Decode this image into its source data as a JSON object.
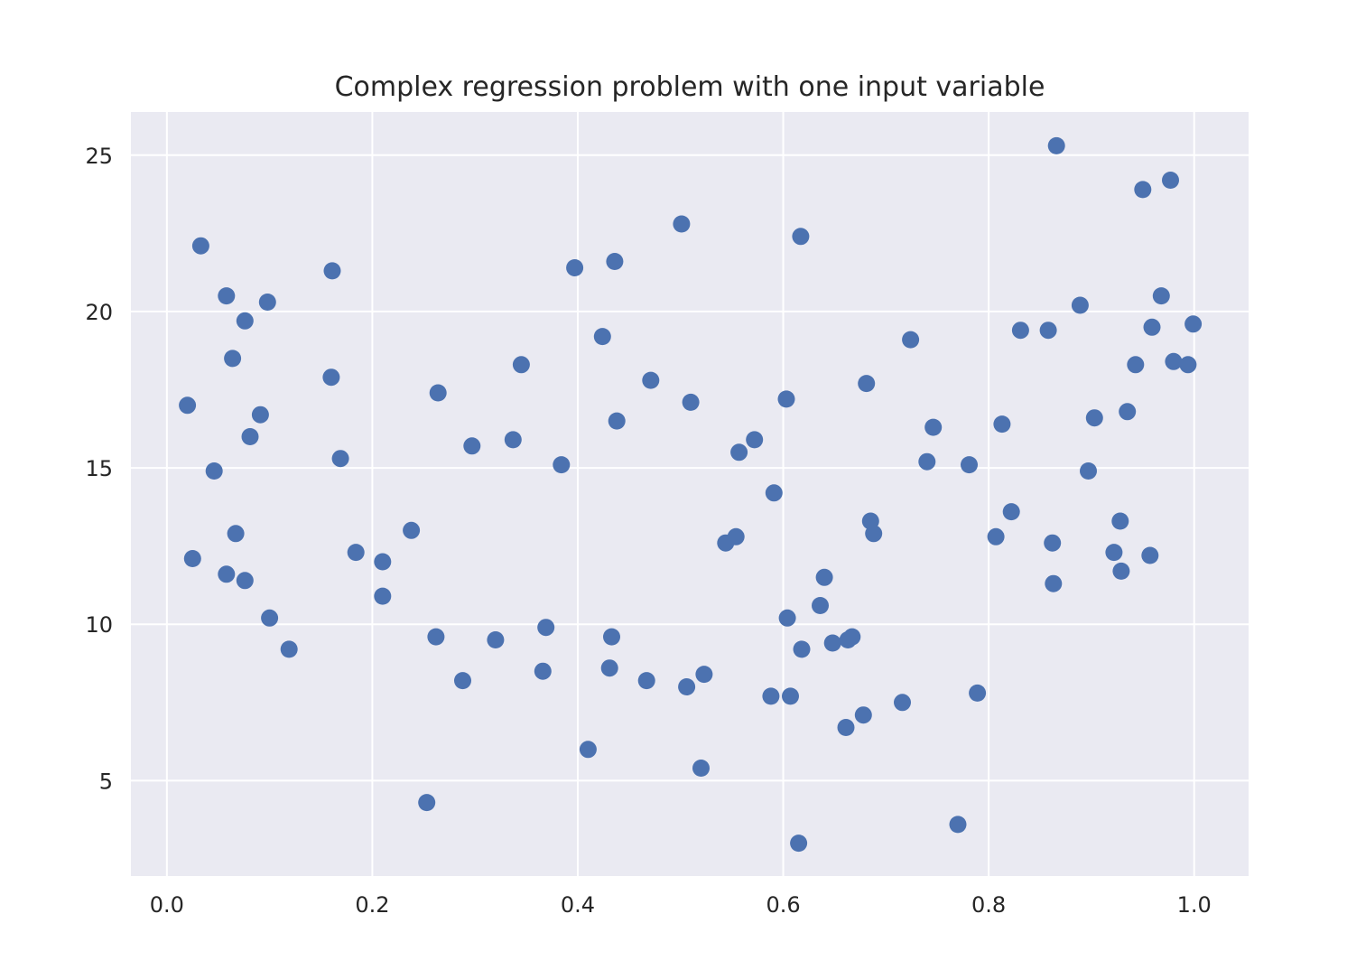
{
  "chart_data": {
    "type": "scatter",
    "title": "Complex regression problem with one input variable",
    "xlabel": "",
    "ylabel": "",
    "xlim": [
      -0.035,
      1.053
    ],
    "ylim": [
      1.95,
      26.38
    ],
    "x_ticks": [
      0.0,
      0.2,
      0.4,
      0.6,
      0.8,
      1.0
    ],
    "x_tick_labels": [
      "0.0",
      "0.2",
      "0.4",
      "0.6",
      "0.8",
      "1.0"
    ],
    "y_ticks": [
      5,
      10,
      15,
      20,
      25
    ],
    "y_tick_labels": [
      "5",
      "10",
      "15",
      "20",
      "25"
    ],
    "grid": true,
    "legend": "none",
    "colors": {
      "background": "#eaeaf2",
      "grid": "#ffffff",
      "marker": "#4c72b0",
      "text": "#262626"
    },
    "series": [
      {
        "points": [
          [
            0.02,
            17.0
          ],
          [
            0.025,
            12.1
          ],
          [
            0.033,
            22.1
          ],
          [
            0.046,
            14.9
          ],
          [
            0.058,
            20.5
          ],
          [
            0.058,
            11.6
          ],
          [
            0.064,
            18.5
          ],
          [
            0.067,
            12.9
          ],
          [
            0.076,
            19.7
          ],
          [
            0.076,
            11.4
          ],
          [
            0.081,
            16.0
          ],
          [
            0.091,
            16.7
          ],
          [
            0.098,
            20.3
          ],
          [
            0.1,
            10.2
          ],
          [
            0.119,
            9.2
          ],
          [
            0.16,
            17.9
          ],
          [
            0.161,
            21.3
          ],
          [
            0.169,
            15.3
          ],
          [
            0.184,
            12.3
          ],
          [
            0.21,
            10.9
          ],
          [
            0.21,
            12.0
          ],
          [
            0.238,
            13.0
          ],
          [
            0.253,
            4.3
          ],
          [
            0.262,
            9.6
          ],
          [
            0.264,
            17.4
          ],
          [
            0.288,
            8.2
          ],
          [
            0.297,
            15.7
          ],
          [
            0.32,
            9.5
          ],
          [
            0.337,
            15.9
          ],
          [
            0.345,
            18.3
          ],
          [
            0.366,
            8.5
          ],
          [
            0.369,
            9.9
          ],
          [
            0.384,
            15.1
          ],
          [
            0.397,
            21.4
          ],
          [
            0.41,
            6.0
          ],
          [
            0.424,
            19.2
          ],
          [
            0.431,
            8.6
          ],
          [
            0.433,
            9.6
          ],
          [
            0.436,
            21.6
          ],
          [
            0.438,
            16.5
          ],
          [
            0.467,
            8.2
          ],
          [
            0.471,
            17.8
          ],
          [
            0.501,
            22.8
          ],
          [
            0.506,
            8.0
          ],
          [
            0.51,
            17.1
          ],
          [
            0.52,
            5.4
          ],
          [
            0.523,
            8.4
          ],
          [
            0.544,
            12.6
          ],
          [
            0.554,
            12.8
          ],
          [
            0.557,
            15.5
          ],
          [
            0.572,
            15.9
          ],
          [
            0.588,
            7.7
          ],
          [
            0.591,
            14.2
          ],
          [
            0.603,
            17.2
          ],
          [
            0.604,
            10.2
          ],
          [
            0.607,
            7.7
          ],
          [
            0.615,
            3.0
          ],
          [
            0.617,
            22.4
          ],
          [
            0.618,
            9.2
          ],
          [
            0.636,
            10.6
          ],
          [
            0.64,
            11.5
          ],
          [
            0.648,
            9.4
          ],
          [
            0.661,
            6.7
          ],
          [
            0.663,
            9.5
          ],
          [
            0.667,
            9.6
          ],
          [
            0.678,
            7.1
          ],
          [
            0.681,
            17.7
          ],
          [
            0.685,
            13.3
          ],
          [
            0.688,
            12.9
          ],
          [
            0.716,
            7.5
          ],
          [
            0.724,
            19.1
          ],
          [
            0.74,
            15.2
          ],
          [
            0.746,
            16.3
          ],
          [
            0.77,
            3.6
          ],
          [
            0.781,
            15.1
          ],
          [
            0.789,
            7.8
          ],
          [
            0.807,
            12.8
          ],
          [
            0.813,
            16.4
          ],
          [
            0.822,
            13.6
          ],
          [
            0.831,
            19.4
          ],
          [
            0.858,
            19.4
          ],
          [
            0.862,
            12.6
          ],
          [
            0.863,
            11.3
          ],
          [
            0.866,
            25.3
          ],
          [
            0.889,
            20.2
          ],
          [
            0.897,
            14.9
          ],
          [
            0.903,
            16.6
          ],
          [
            0.922,
            12.3
          ],
          [
            0.928,
            13.3
          ],
          [
            0.929,
            11.7
          ],
          [
            0.935,
            16.8
          ],
          [
            0.943,
            18.3
          ],
          [
            0.95,
            23.9
          ],
          [
            0.957,
            12.2
          ],
          [
            0.959,
            19.5
          ],
          [
            0.968,
            20.5
          ],
          [
            0.977,
            24.2
          ],
          [
            0.98,
            18.4
          ],
          [
            0.994,
            18.3
          ],
          [
            0.999,
            19.6
          ]
        ]
      }
    ]
  }
}
